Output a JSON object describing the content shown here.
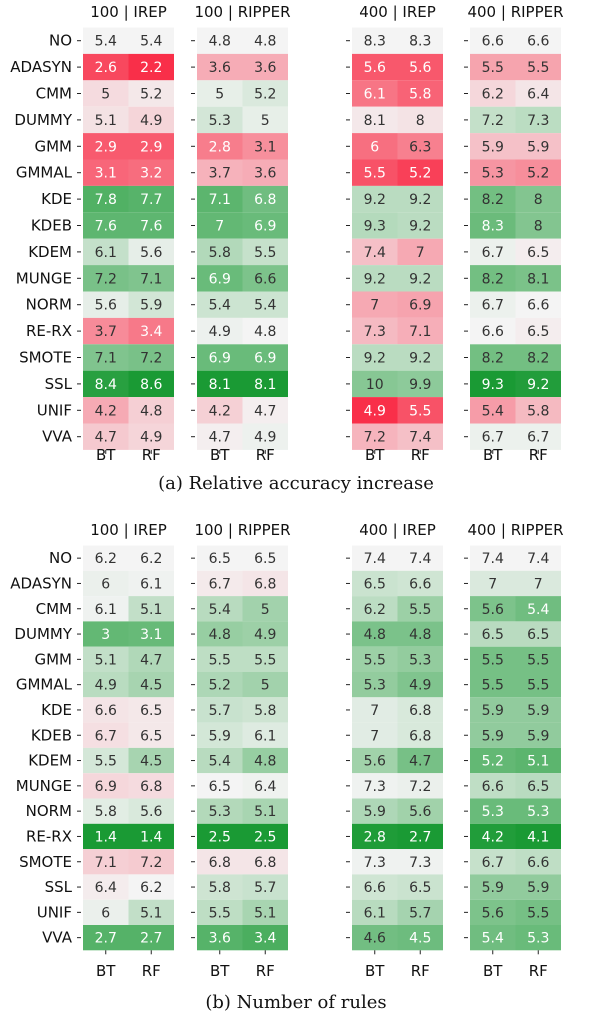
{
  "chart_data": [
    {
      "type": "heatmap",
      "caption": "(a) Relative accuracy increase",
      "rows": [
        "NO",
        "ADASYN",
        "CMM",
        "DUMMY",
        "GMM",
        "GMMAL",
        "KDE",
        "KDEB",
        "KDEM",
        "MUNGE",
        "NORM",
        "RE-RX",
        "SMOTE",
        "SSL",
        "UNIF",
        "VVA"
      ],
      "cols": [
        "BT",
        "RF"
      ],
      "panels": [
        {
          "title": "100 | IREP",
          "values": [
            [
              5.4,
              5.4
            ],
            [
              2.6,
              2.2
            ],
            [
              5,
              5.2
            ],
            [
              5.1,
              4.9
            ],
            [
              2.9,
              2.9
            ],
            [
              3.1,
              3.2
            ],
            [
              7.8,
              7.7
            ],
            [
              7.6,
              7.6
            ],
            [
              6.1,
              5.6
            ],
            [
              7.2,
              7.1
            ],
            [
              5.6,
              5.9
            ],
            [
              3.7,
              3.4
            ],
            [
              7.1,
              7.2
            ],
            [
              8.4,
              8.6
            ],
            [
              4.2,
              4.8
            ],
            [
              4.7,
              4.9
            ]
          ]
        },
        {
          "title": "100 | RIPPER",
          "values": [
            [
              4.8,
              4.8
            ],
            [
              3.6,
              3.6
            ],
            [
              5,
              5.2
            ],
            [
              5.3,
              5
            ],
            [
              2.8,
              3.1
            ],
            [
              3.7,
              3.6
            ],
            [
              7.1,
              6.8
            ],
            [
              7,
              6.9
            ],
            [
              5.8,
              5.5
            ],
            [
              6.9,
              6.6
            ],
            [
              5.4,
              5.4
            ],
            [
              4.9,
              4.8
            ],
            [
              6.9,
              6.9
            ],
            [
              8.1,
              8.1
            ],
            [
              4.2,
              4.7
            ],
            [
              4.7,
              4.9
            ]
          ]
        },
        {
          "title": "400 | IREP",
          "values": [
            [
              8.3,
              8.3
            ],
            [
              5.6,
              5.6
            ],
            [
              6.1,
              5.8
            ],
            [
              8.1,
              8
            ],
            [
              6,
              6.3
            ],
            [
              5.5,
              5.2
            ],
            [
              9.2,
              9.2
            ],
            [
              9.3,
              9.2
            ],
            [
              7.4,
              7
            ],
            [
              9.2,
              9.2
            ],
            [
              7,
              6.9
            ],
            [
              7.3,
              7.1
            ],
            [
              9.2,
              9.2
            ],
            [
              10,
              9.9
            ],
            [
              4.9,
              5.5
            ],
            [
              7.2,
              7.4
            ]
          ]
        },
        {
          "title": "400 | RIPPER",
          "values": [
            [
              6.6,
              6.6
            ],
            [
              5.5,
              5.5
            ],
            [
              6.2,
              6.4
            ],
            [
              7.2,
              7.3
            ],
            [
              5.9,
              5.9
            ],
            [
              5.3,
              5.2
            ],
            [
              8.2,
              8
            ],
            [
              8.3,
              8
            ],
            [
              6.7,
              6.5
            ],
            [
              8.2,
              8.1
            ],
            [
              6.7,
              6.6
            ],
            [
              6.6,
              6.5
            ],
            [
              8.2,
              8.2
            ],
            [
              9.3,
              9.2
            ],
            [
              5.4,
              5.8
            ],
            [
              6.7,
              6.7
            ]
          ]
        }
      ]
    },
    {
      "type": "heatmap",
      "caption": "(b) Number of rules",
      "rows": [
        "NO",
        "ADASYN",
        "CMM",
        "DUMMY",
        "GMM",
        "GMMAL",
        "KDE",
        "KDEB",
        "KDEM",
        "MUNGE",
        "NORM",
        "RE-RX",
        "SMOTE",
        "SSL",
        "UNIF",
        "VVA"
      ],
      "cols": [
        "BT",
        "RF"
      ],
      "panels": [
        {
          "title": "100 | IREP",
          "values": [
            [
              6.2,
              6.2
            ],
            [
              6,
              6.1
            ],
            [
              6.1,
              5.1
            ],
            [
              3,
              3.1
            ],
            [
              5.1,
              4.7
            ],
            [
              4.9,
              4.5
            ],
            [
              6.6,
              6.5
            ],
            [
              6.7,
              6.5
            ],
            [
              5.5,
              4.5
            ],
            [
              6.9,
              6.8
            ],
            [
              5.8,
              5.6
            ],
            [
              1.4,
              1.4
            ],
            [
              7.1,
              7.2
            ],
            [
              6.4,
              6.2
            ],
            [
              6,
              5.1
            ],
            [
              2.7,
              2.7
            ]
          ]
        },
        {
          "title": "100 | RIPPER",
          "values": [
            [
              6.5,
              6.5
            ],
            [
              6.7,
              6.8
            ],
            [
              5.4,
              5
            ],
            [
              4.8,
              4.9
            ],
            [
              5.5,
              5.5
            ],
            [
              5.2,
              5
            ],
            [
              5.7,
              5.8
            ],
            [
              5.9,
              6.1
            ],
            [
              5.4,
              4.8
            ],
            [
              6.5,
              6.4
            ],
            [
              5.3,
              5.1
            ],
            [
              2.5,
              2.5
            ],
            [
              6.8,
              6.8
            ],
            [
              5.8,
              5.7
            ],
            [
              5.5,
              5.1
            ],
            [
              3.6,
              3.4
            ]
          ]
        },
        {
          "title": "400 | IREP",
          "values": [
            [
              7.4,
              7.4
            ],
            [
              6.5,
              6.6
            ],
            [
              6.2,
              5.5
            ],
            [
              4.8,
              4.8
            ],
            [
              5.5,
              5.3
            ],
            [
              5.3,
              4.9
            ],
            [
              7,
              6.8
            ],
            [
              7,
              6.8
            ],
            [
              5.6,
              4.7
            ],
            [
              7.3,
              7.2
            ],
            [
              5.9,
              5.6
            ],
            [
              2.8,
              2.7
            ],
            [
              7.3,
              7.3
            ],
            [
              6.6,
              6.5
            ],
            [
              6.1,
              5.7
            ],
            [
              4.6,
              4.5
            ]
          ]
        },
        {
          "title": "400 | RIPPER",
          "values": [
            [
              7.4,
              7.4
            ],
            [
              7,
              7
            ],
            [
              5.6,
              5.4
            ],
            [
              6.5,
              6.5
            ],
            [
              5.5,
              5.5
            ],
            [
              5.5,
              5.5
            ],
            [
              5.9,
              5.9
            ],
            [
              5.9,
              5.9
            ],
            [
              5.2,
              5.1
            ],
            [
              6.6,
              6.5
            ],
            [
              5.3,
              5.3
            ],
            [
              4.2,
              4.1
            ],
            [
              6.7,
              6.6
            ],
            [
              5.9,
              5.9
            ],
            [
              5.6,
              5.5
            ],
            [
              5.4,
              5.3
            ]
          ]
        }
      ]
    }
  ],
  "colors": {
    "high_good": "#1a9a34",
    "low_bad": "#f92f49",
    "neutral": "#f4f4f4",
    "text_dark": "#333333",
    "text_light": "#ffffff"
  }
}
